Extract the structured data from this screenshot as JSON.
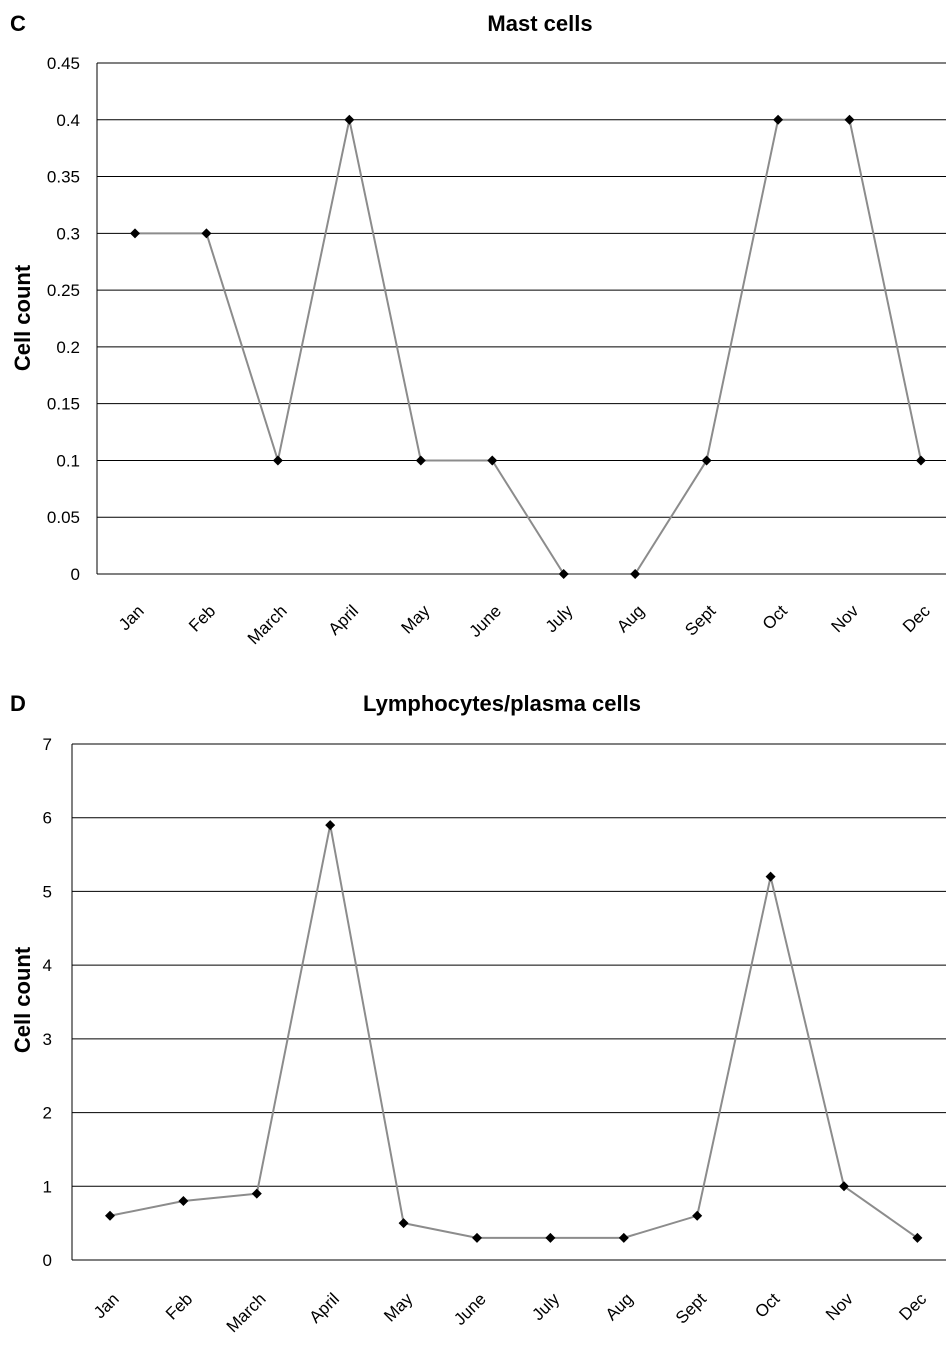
{
  "chart_data": [
    {
      "panel": "C",
      "type": "line",
      "title": "Mast cells",
      "xlabel": "",
      "ylabel": "Cell count",
      "categories": [
        "Jan",
        "Feb",
        "March",
        "April",
        "May",
        "June",
        "July",
        "Aug",
        "Sept",
        "Oct",
        "Nov",
        "Dec"
      ],
      "values": [
        0.3,
        0.3,
        0.1,
        0.4,
        0.1,
        0.1,
        0,
        0,
        0.1,
        0.4,
        0.4,
        0.1
      ],
      "ylim": [
        0,
        0.45
      ],
      "yticks": [
        "0",
        "0.05",
        "0.1",
        "0.15",
        "0.2",
        "0.25",
        "0.3",
        "0.35",
        "0.4",
        "0.45"
      ],
      "grid": true,
      "legend": "none",
      "line_color": "#8c8c8c",
      "marker_color": "#000000"
    },
    {
      "panel": "D",
      "type": "line",
      "title": "Lymphocytes/plasma cells",
      "xlabel": "",
      "ylabel": "Cell count",
      "categories": [
        "Jan",
        "Feb",
        "March",
        "April",
        "May",
        "June",
        "July",
        "Aug",
        "Sept",
        "Oct",
        "Nov",
        "Dec"
      ],
      "values": [
        0.6,
        0.8,
        0.9,
        5.9,
        0.5,
        0.3,
        0.3,
        0.3,
        0.6,
        5.2,
        1.0,
        0.3
      ],
      "ylim": [
        0,
        7
      ],
      "yticks": [
        "0",
        "1",
        "2",
        "3",
        "4",
        "5",
        "6",
        "7"
      ],
      "grid": true,
      "legend": "none",
      "line_color": "#8c8c8c",
      "marker_color": "#000000"
    }
  ]
}
